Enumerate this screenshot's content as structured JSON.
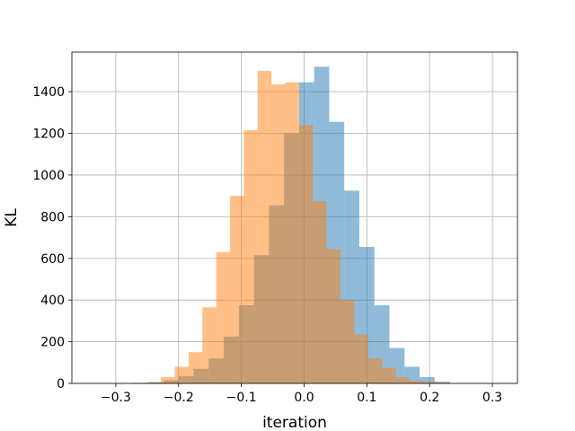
{
  "chart_data": {
    "type": "bar",
    "title": "",
    "xlabel": "iteration",
    "ylabel": "KL",
    "xlim": [
      -0.37,
      0.34
    ],
    "ylim": [
      0,
      1590
    ],
    "grid": true,
    "xticks": [
      -0.3,
      -0.2,
      -0.1,
      0.0,
      0.1,
      0.2,
      0.3
    ],
    "xtick_labels": [
      "−0.3",
      "−0.2",
      "−0.1",
      "0.0",
      "0.1",
      "0.2",
      "0.3"
    ],
    "yticks": [
      0,
      200,
      400,
      600,
      800,
      1000,
      1200,
      1400
    ],
    "ytick_labels": [
      "0",
      "200",
      "400",
      "600",
      "800",
      "1000",
      "1200",
      "1400"
    ],
    "colors": {
      "blue": "#1f77b4",
      "orange": "#ff7f0e",
      "grid": "#b0b0b0"
    },
    "alpha": 0.5,
    "series": [
      {
        "color": "#1f77b4",
        "bins": [
          [
            -0.272,
            -0.248,
            3
          ],
          [
            -0.248,
            -0.224,
            6
          ],
          [
            -0.224,
            -0.2,
            15
          ],
          [
            -0.2,
            -0.176,
            35
          ],
          [
            -0.176,
            -0.152,
            70
          ],
          [
            -0.152,
            -0.128,
            120
          ],
          [
            -0.128,
            -0.104,
            225
          ],
          [
            -0.104,
            -0.08,
            375
          ],
          [
            -0.08,
            -0.056,
            615
          ],
          [
            -0.056,
            -0.032,
            855
          ],
          [
            -0.032,
            -0.008,
            1200
          ],
          [
            -0.008,
            0.016,
            1445
          ],
          [
            0.016,
            0.04,
            1520
          ],
          [
            0.04,
            0.064,
            1255
          ],
          [
            0.064,
            0.088,
            925
          ],
          [
            0.088,
            0.112,
            655
          ],
          [
            0.112,
            0.136,
            375
          ],
          [
            0.136,
            0.16,
            170
          ],
          [
            0.16,
            0.184,
            80
          ],
          [
            0.184,
            0.208,
            30
          ],
          [
            0.208,
            0.232,
            8
          ]
        ]
      },
      {
        "color": "#ff7f0e",
        "bins": [
          [
            -0.25,
            -0.228,
            5
          ],
          [
            -0.228,
            -0.206,
            30
          ],
          [
            -0.206,
            -0.184,
            80
          ],
          [
            -0.184,
            -0.162,
            150
          ],
          [
            -0.162,
            -0.14,
            365
          ],
          [
            -0.14,
            -0.118,
            630
          ],
          [
            -0.118,
            -0.096,
            900
          ],
          [
            -0.096,
            -0.074,
            1215
          ],
          [
            -0.074,
            -0.052,
            1500
          ],
          [
            -0.052,
            -0.03,
            1435
          ],
          [
            -0.03,
            -0.008,
            1445
          ],
          [
            -0.008,
            0.014,
            1240
          ],
          [
            0.014,
            0.036,
            875
          ],
          [
            0.036,
            0.058,
            645
          ],
          [
            0.058,
            0.08,
            400
          ],
          [
            0.08,
            0.102,
            235
          ],
          [
            0.102,
            0.124,
            120
          ],
          [
            0.124,
            0.146,
            75
          ],
          [
            0.146,
            0.168,
            30
          ],
          [
            0.168,
            0.19,
            12
          ],
          [
            0.19,
            0.212,
            8
          ],
          [
            0.212,
            0.234,
            3
          ]
        ]
      }
    ]
  }
}
